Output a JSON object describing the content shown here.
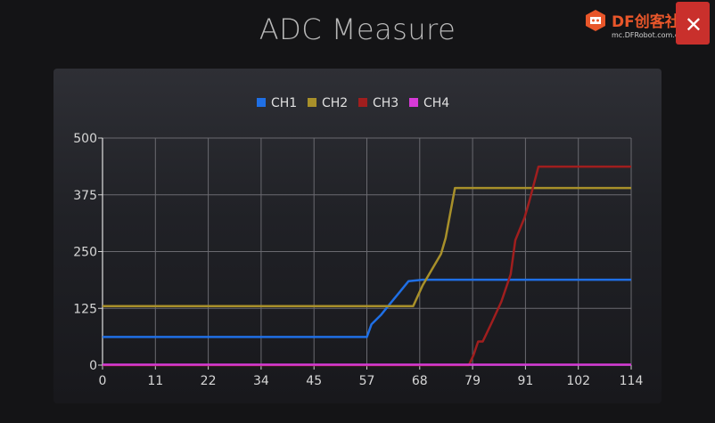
{
  "chart_data": {
    "type": "line",
    "title": "ADC Measure",
    "xlabel": "",
    "ylabel": "",
    "xlim": [
      0,
      114
    ],
    "ylim": [
      0,
      500
    ],
    "x_ticks": [
      "0",
      "11",
      "22",
      "34",
      "45",
      "57",
      "68",
      "79",
      "91",
      "102",
      "114"
    ],
    "y_ticks": [
      "0",
      "125",
      "250",
      "375",
      "500"
    ],
    "grid": true,
    "legend_position": "top-center",
    "series": [
      {
        "name": "CH1",
        "color": "#1f6fe5",
        "points": [
          [
            0,
            62
          ],
          [
            57,
            62
          ],
          [
            58,
            90
          ],
          [
            60,
            110
          ],
          [
            62,
            135
          ],
          [
            64,
            160
          ],
          [
            66,
            185
          ],
          [
            69,
            188
          ],
          [
            114,
            188
          ]
        ]
      },
      {
        "name": "CH2",
        "color": "#a8902a",
        "points": [
          [
            0,
            130
          ],
          [
            67,
            130
          ],
          [
            69,
            175
          ],
          [
            71,
            210
          ],
          [
            73,
            245
          ],
          [
            74,
            280
          ],
          [
            76,
            390
          ],
          [
            114,
            390
          ]
        ]
      },
      {
        "name": "CH3",
        "color": "#a01e1e",
        "points": [
          [
            0,
            0
          ],
          [
            79,
            0
          ],
          [
            80,
            22
          ],
          [
            81,
            52
          ],
          [
            82,
            52
          ],
          [
            84,
            95
          ],
          [
            86,
            140
          ],
          [
            88,
            200
          ],
          [
            89,
            275
          ],
          [
            91,
            325
          ],
          [
            92,
            360
          ],
          [
            94,
            437
          ],
          [
            114,
            437
          ]
        ]
      },
      {
        "name": "CH4",
        "color": "#d63ad6",
        "points": [
          [
            0,
            1
          ],
          [
            114,
            1
          ]
        ]
      }
    ]
  },
  "watermark": {
    "brand": "DF创客社区",
    "url": "mc.DFRobot.com.cn",
    "close_glyph": "✕"
  }
}
